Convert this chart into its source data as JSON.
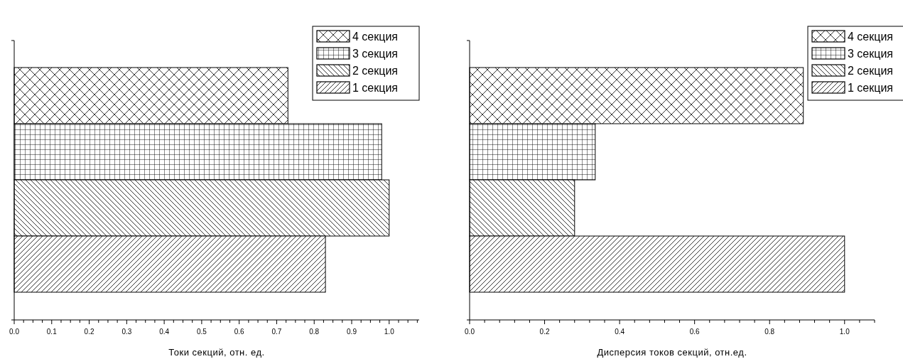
{
  "chart_data": [
    {
      "type": "bar",
      "orientation": "horizontal",
      "xlabel": "Токи секций, отн. ед.",
      "categories": [
        null,
        null,
        null,
        null
      ],
      "series": [
        {
          "name": "4 секция",
          "color": "#000000",
          "values": [
            0.73,
            null,
            null,
            null
          ]
        },
        {
          "name": "3 секция",
          "color": "#000000",
          "values": [
            null,
            0.98,
            null,
            null
          ]
        },
        {
          "name": "2 секция",
          "color": "#000000",
          "values": [
            null,
            null,
            1.0,
            null
          ]
        },
        {
          "name": "1 секция",
          "color": "#000000",
          "values": [
            null,
            null,
            null,
            0.83
          ]
        }
      ],
      "xlim": [
        0,
        1.08
      ],
      "xticks": [
        {
          "value": 0,
          "label": "0.0"
        },
        {
          "value": 0.025,
          "label": null
        },
        {
          "value": 0.05,
          "label": null
        },
        {
          "value": 0.075,
          "label": null
        },
        {
          "value": 0.1,
          "label": "0.1"
        },
        {
          "value": 0.125,
          "label": null
        },
        {
          "value": 0.15,
          "label": null
        },
        {
          "value": 0.175,
          "label": null
        },
        {
          "value": 0.2,
          "label": "0.2"
        },
        {
          "value": 0.225,
          "label": null
        },
        {
          "value": 0.25,
          "label": null
        },
        {
          "value": 0.275,
          "label": null
        },
        {
          "value": 0.3,
          "label": "0.3"
        },
        {
          "value": 0.325,
          "label": null
        },
        {
          "value": 0.35,
          "label": null
        },
        {
          "value": 0.375,
          "label": null
        },
        {
          "value": 0.4,
          "label": "0.4"
        },
        {
          "value": 0.425,
          "label": null
        },
        {
          "value": 0.45,
          "label": null
        },
        {
          "value": 0.475,
          "label": null
        },
        {
          "value": 0.5,
          "label": "0.5"
        },
        {
          "value": 0.525,
          "label": null
        },
        {
          "value": 0.55,
          "label": null
        },
        {
          "value": 0.575,
          "label": null
        },
        {
          "value": 0.6,
          "label": "0.6"
        },
        {
          "value": 0.625,
          "label": null
        },
        {
          "value": 0.65,
          "label": null
        },
        {
          "value": 0.675,
          "label": null
        },
        {
          "value": 0.7,
          "label": "0.7"
        },
        {
          "value": 0.725,
          "label": null
        },
        {
          "value": 0.75,
          "label": null
        },
        {
          "value": 0.775,
          "label": null
        },
        {
          "value": 0.8,
          "label": "0.8"
        },
        {
          "value": 0.825,
          "label": null
        },
        {
          "value": 0.85,
          "label": null
        },
        {
          "value": 0.875,
          "label": null
        },
        {
          "value": 0.9,
          "label": "0.9"
        },
        {
          "value": 0.925,
          "label": null
        },
        {
          "value": 0.95,
          "label": null
        },
        {
          "value": 0.975,
          "label": null
        },
        {
          "value": 1.0,
          "label": "1.0"
        },
        {
          "value": 1.025,
          "label": null
        },
        {
          "value": 1.05,
          "label": null
        },
        {
          "value": 1.075,
          "label": null
        }
      ],
      "legend": "top right"
    },
    {
      "type": "bar",
      "orientation": "horizontal",
      "xlabel": "Дисперсия токов секций, отн.ед.",
      "categories": [
        null,
        null,
        null,
        null
      ],
      "series": [
        {
          "name": "4 секция",
          "color": "#000000",
          "values": [
            0.89,
            null,
            null,
            null
          ]
        },
        {
          "name": "3 секция",
          "color": "#000000",
          "values": [
            null,
            0.335,
            null,
            null
          ]
        },
        {
          "name": "2 секция",
          "color": "#000000",
          "values": [
            null,
            null,
            0.28,
            null
          ]
        },
        {
          "name": "1 секция",
          "color": "#000000",
          "values": [
            null,
            null,
            null,
            1.0
          ]
        }
      ],
      "xlim": [
        0,
        1.08
      ],
      "xticks": [
        {
          "value": 0,
          "label": "0.0"
        },
        {
          "value": 0.04,
          "label": null
        },
        {
          "value": 0.08,
          "label": null
        },
        {
          "value": 0.12,
          "label": null
        },
        {
          "value": 0.16,
          "label": null
        },
        {
          "value": 0.2,
          "label": "0.2"
        },
        {
          "value": 0.24,
          "label": null
        },
        {
          "value": 0.28,
          "label": null
        },
        {
          "value": 0.32,
          "label": null
        },
        {
          "value": 0.36,
          "label": null
        },
        {
          "value": 0.4,
          "label": "0.4"
        },
        {
          "value": 0.44,
          "label": null
        },
        {
          "value": 0.48,
          "label": null
        },
        {
          "value": 0.52,
          "label": null
        },
        {
          "value": 0.56,
          "label": null
        },
        {
          "value": 0.6,
          "label": "0.6"
        },
        {
          "value": 0.64,
          "label": null
        },
        {
          "value": 0.68,
          "label": null
        },
        {
          "value": 0.72,
          "label": null
        },
        {
          "value": 0.76,
          "label": null
        },
        {
          "value": 0.8,
          "label": "0.8"
        },
        {
          "value": 0.84,
          "label": null
        },
        {
          "value": 0.88,
          "label": null
        },
        {
          "value": 0.92,
          "label": null
        },
        {
          "value": 0.96,
          "label": null
        },
        {
          "value": 1.0,
          "label": "1.0"
        },
        {
          "value": 1.04,
          "label": null
        },
        {
          "value": 1.08,
          "label": null
        }
      ],
      "legend": "top right"
    }
  ]
}
